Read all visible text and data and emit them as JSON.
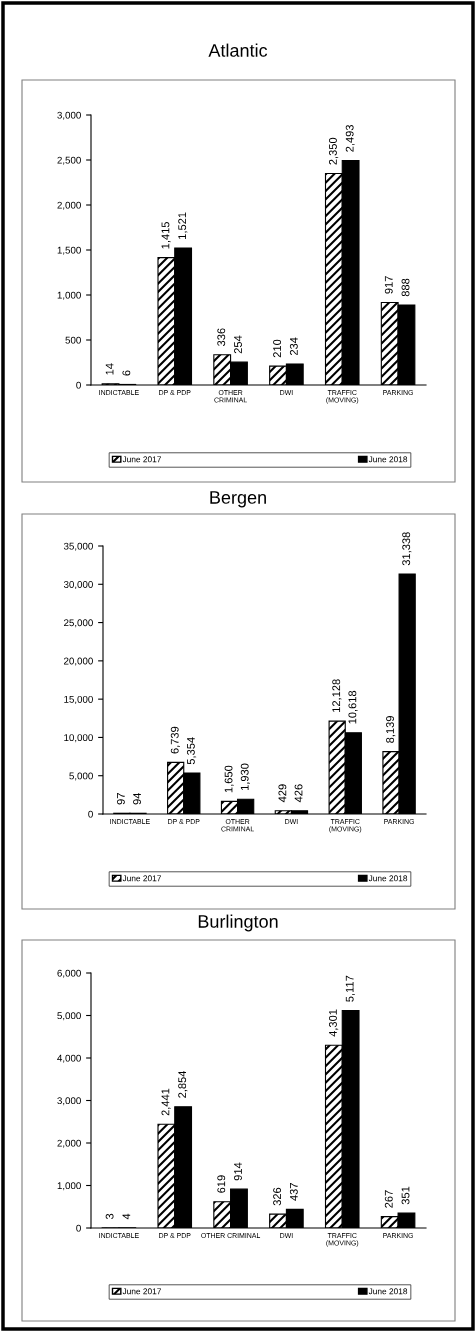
{
  "chart_data": [
    {
      "type": "bar",
      "title": "Atlantic",
      "categories": [
        "INDICTABLE",
        "DP & PDP",
        "OTHER\nCRIMINAL",
        "DWI",
        "TRAFFIC\n(MOVING)",
        "PARKING"
      ],
      "series": [
        {
          "name": "June 2017",
          "color": "#000000",
          "values": [
            14,
            1415,
            336,
            210,
            2350,
            917
          ],
          "value_labels": [
            "14",
            "1,415",
            "336",
            "210",
            "2,350",
            "917"
          ]
        },
        {
          "name": "June 2018",
          "color": "#000000",
          "values": [
            6,
            1521,
            254,
            234,
            2493,
            888
          ],
          "value_labels": [
            "6",
            "1,521",
            "254",
            "234",
            "2,493",
            "888"
          ]
        }
      ],
      "ylim": [
        0,
        3000
      ],
      "yticks": [
        {
          "value": 0,
          "label": "0"
        },
        {
          "value": 500,
          "label": "500"
        },
        {
          "value": 1000,
          "label": "1,000"
        },
        {
          "value": 1500,
          "label": "1,500"
        },
        {
          "value": 2000,
          "label": "2,000"
        },
        {
          "value": 2500,
          "label": "2,500"
        },
        {
          "value": 3000,
          "label": "3,000"
        }
      ],
      "legend": "bottom",
      "grid": false
    },
    {
      "type": "bar",
      "title": "Bergen",
      "categories": [
        "INDICTABLE",
        "DP & PDP",
        "OTHER\nCRIMINAL",
        "DWI",
        "TRAFFIC\n(MOVING)",
        "PARKING"
      ],
      "series": [
        {
          "name": "June 2017",
          "color": "#000000",
          "values": [
            97,
            6739,
            1650,
            429,
            12128,
            8139
          ],
          "value_labels": [
            "97",
            "6,739",
            "1,650",
            "429",
            "12,128",
            "8,139"
          ]
        },
        {
          "name": "June 2018",
          "color": "#000000",
          "values": [
            94,
            5354,
            1930,
            426,
            10618,
            31338
          ],
          "value_labels": [
            "94",
            "5,354",
            "1,930",
            "426",
            "10,618",
            "31,338"
          ]
        }
      ],
      "ylim": [
        0,
        35000
      ],
      "yticks": [
        {
          "value": 0,
          "label": "0"
        },
        {
          "value": 5000,
          "label": "5,000"
        },
        {
          "value": 10000,
          "label": "10,000"
        },
        {
          "value": 15000,
          "label": "15,000"
        },
        {
          "value": 20000,
          "label": "20,000"
        },
        {
          "value": 25000,
          "label": "25,000"
        },
        {
          "value": 30000,
          "label": "30,000"
        },
        {
          "value": 35000,
          "label": "35,000"
        }
      ],
      "legend": "bottom",
      "grid": false
    },
    {
      "type": "bar",
      "title": "Burlington",
      "categories": [
        "INDICTABLE",
        "DP & PDP",
        "OTHER CRIMINAL",
        "DWI",
        "TRAFFIC\n(MOVING)",
        "PARKING"
      ],
      "series": [
        {
          "name": "June 2017",
          "color": "#000000",
          "values": [
            3,
            2441,
            619,
            326,
            4301,
            267
          ],
          "value_labels": [
            "3",
            "2,441",
            "619",
            "326",
            "4,301",
            "267"
          ]
        },
        {
          "name": "June 2018",
          "color": "#000000",
          "values": [
            4,
            2854,
            914,
            437,
            5117,
            351
          ],
          "value_labels": [
            "4",
            "2,854",
            "914",
            "437",
            "5,117",
            "351"
          ]
        }
      ],
      "ylim": [
        0,
        6000
      ],
      "yticks": [
        {
          "value": 0,
          "label": "0"
        },
        {
          "value": 1000,
          "label": "1,000"
        },
        {
          "value": 2000,
          "label": "2,000"
        },
        {
          "value": 3000,
          "label": "3,000"
        },
        {
          "value": 4000,
          "label": "4,000"
        },
        {
          "value": 5000,
          "label": "5,000"
        },
        {
          "value": 6000,
          "label": "6,000"
        }
      ],
      "legend": "bottom",
      "grid": false
    }
  ]
}
